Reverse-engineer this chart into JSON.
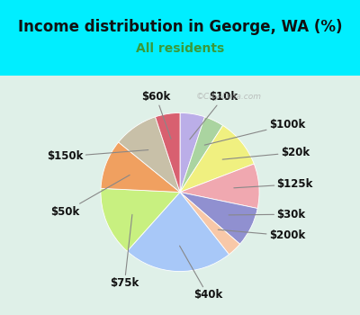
{
  "title": "Income distribution in George, WA (%)",
  "subtitle": "All residents",
  "bg_cyan": "#00eeff",
  "bg_chart": "#dff0e8",
  "watermark": "©City-Data.com",
  "slices": [
    {
      "label": "$10k",
      "value": 5,
      "color": "#bbaee8"
    },
    {
      "label": "$100k",
      "value": 4,
      "color": "#aad4a0"
    },
    {
      "label": "$20k",
      "value": 10,
      "color": "#f0f080"
    },
    {
      "label": "$125k",
      "value": 9,
      "color": "#f0a8b0"
    },
    {
      "label": "$30k",
      "value": 8,
      "color": "#9090d0"
    },
    {
      "label": "$200k",
      "value": 3,
      "color": "#f8c8a8"
    },
    {
      "label": "$40k",
      "value": 22,
      "color": "#a8c8f8"
    },
    {
      "label": "$75k",
      "value": 14,
      "color": "#c8f080"
    },
    {
      "label": "$50k",
      "value": 10,
      "color": "#f0a060"
    },
    {
      "label": "$150k",
      "value": 9,
      "color": "#c8c0a8"
    },
    {
      "label": "$60k",
      "value": 5,
      "color": "#d86070"
    }
  ],
  "startangle": 90,
  "title_fontsize": 12,
  "subtitle_fontsize": 10,
  "label_fontsize": 8.5
}
